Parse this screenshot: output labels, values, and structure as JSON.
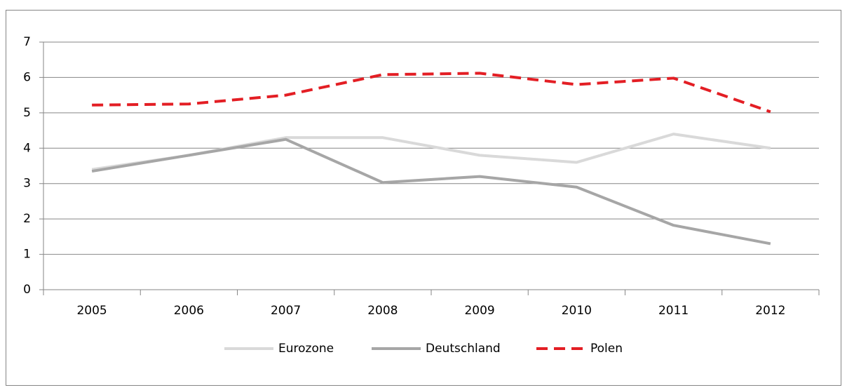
{
  "chart_data": {
    "type": "line",
    "categories": [
      "2005",
      "2006",
      "2007",
      "2008",
      "2009",
      "2010",
      "2011",
      "2012"
    ],
    "series": [
      {
        "name": "Eurozone",
        "color": "#d9d9d9",
        "values": [
          3.4,
          3.8,
          4.3,
          4.3,
          3.8,
          3.6,
          4.4,
          4.0
        ]
      },
      {
        "name": "Deutschland",
        "color": "#a6a6a6",
        "values": [
          3.35,
          3.8,
          4.25,
          3.03,
          3.2,
          2.9,
          1.82,
          1.3
        ]
      },
      {
        "name": "Polen",
        "color": "#e31e24",
        "dashed": true,
        "values": [
          5.22,
          5.25,
          5.5,
          6.08,
          6.12,
          5.8,
          5.98,
          5.03
        ]
      }
    ],
    "ylim": [
      0,
      7
    ],
    "yticks": [
      0,
      1,
      2,
      3,
      4,
      5,
      6,
      7
    ],
    "grid": true,
    "legend": "bottom"
  }
}
